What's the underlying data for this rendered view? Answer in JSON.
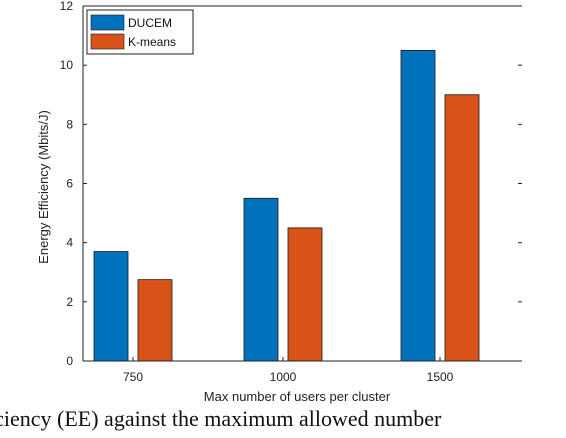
{
  "chart_data": {
    "type": "bar",
    "title": "",
    "xlabel": "Max number of users per cluster",
    "ylabel": "Energy Efficiency (Mbits/J)",
    "categories": [
      "750",
      "1000",
      "1500"
    ],
    "series": [
      {
        "name": "DUCEM",
        "values": [
          3.7,
          5.5,
          10.5
        ],
        "color": "#0072BD"
      },
      {
        "name": "K-means",
        "values": [
          2.75,
          4.5,
          9.0
        ],
        "color": "#D95319"
      }
    ],
    "ylim": [
      0,
      12
    ],
    "yticks": [
      "0",
      "2",
      "4",
      "6",
      "8",
      "10",
      "12"
    ],
    "grid": false,
    "legend_position": "top-left"
  },
  "caption": {
    "text": "iciency (EE) against the maximum allowed number"
  }
}
